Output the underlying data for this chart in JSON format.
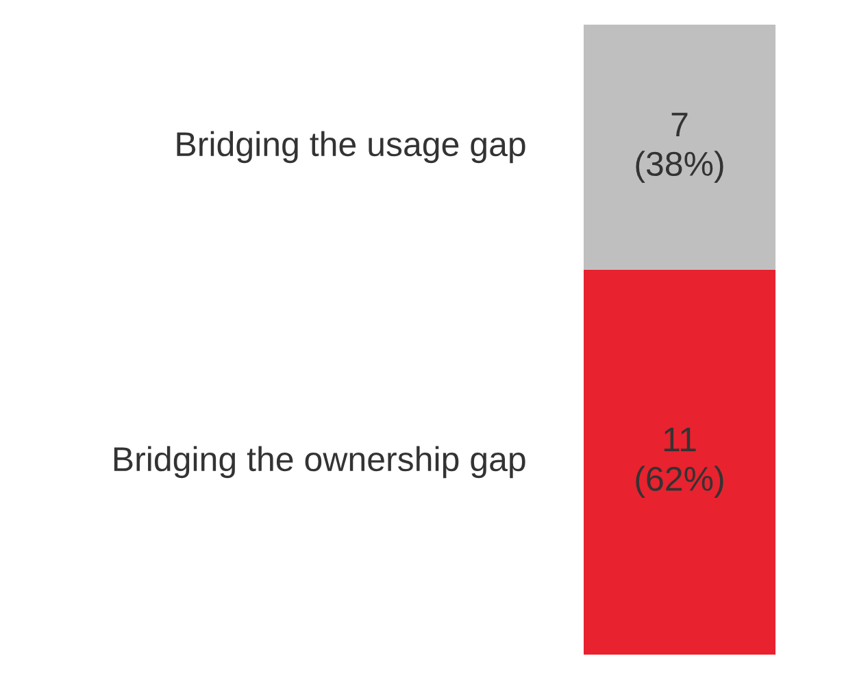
{
  "chart_data": {
    "type": "bar",
    "stacked": true,
    "categories": [
      null
    ],
    "tick_labels": false,
    "grid": false,
    "legend": false,
    "series": [
      {
        "name": "Bridging the ownership gap",
        "color": "#e8222f",
        "values": [
          11
        ],
        "value_labels": [
          "11\n(62%)"
        ]
      },
      {
        "name": "Bridging the usage gap",
        "color": "#bfbfbf",
        "values": [
          7
        ],
        "value_labels": [
          "7\n(38%)"
        ]
      }
    ]
  }
}
